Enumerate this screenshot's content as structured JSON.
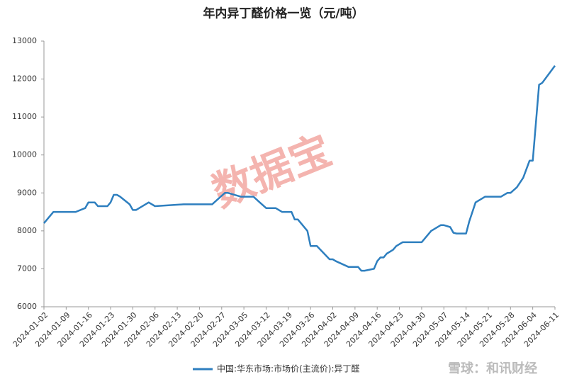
{
  "chart_data": {
    "type": "line",
    "title": "年内异丁醛价格一览（元/吨）",
    "watermark": "数据宝",
    "source": "雪球：和讯财经",
    "x": [
      "2024-01-02",
      "2024-01-05",
      "2024-01-12",
      "2024-01-15",
      "2024-01-16",
      "2024-01-18",
      "2024-01-19",
      "2024-01-22",
      "2024-01-23",
      "2024-01-24",
      "2024-01-25",
      "2024-01-26",
      "2024-01-29",
      "2024-01-30",
      "2024-01-31",
      "2024-02-04",
      "2024-02-06",
      "2024-02-15",
      "2024-02-24",
      "2024-02-26",
      "2024-02-28",
      "2024-02-29",
      "2024-03-04",
      "2024-03-08",
      "2024-03-10",
      "2024-03-12",
      "2024-03-15",
      "2024-03-17",
      "2024-03-20",
      "2024-03-21",
      "2024-03-22",
      "2024-03-25",
      "2024-03-26",
      "2024-03-28",
      "2024-04-01",
      "2024-04-02",
      "2024-04-03",
      "2024-04-07",
      "2024-04-10",
      "2024-04-11",
      "2024-04-12",
      "2024-04-15",
      "2024-04-16",
      "2024-04-17",
      "2024-04-18",
      "2024-04-19",
      "2024-04-21",
      "2024-04-22",
      "2024-04-24",
      "2024-04-30",
      "2024-05-03",
      "2024-05-06",
      "2024-05-07",
      "2024-05-09",
      "2024-05-10",
      "2024-05-11",
      "2024-05-14",
      "2024-05-15",
      "2024-05-17",
      "2024-05-20",
      "2024-05-25",
      "2024-05-27",
      "2024-05-28",
      "2024-05-30",
      "2024-06-01",
      "2024-06-03",
      "2024-06-04",
      "2024-06-06",
      "2024-06-07",
      "2024-06-11"
    ],
    "series": [
      {
        "name": "中国:华东市场:市场价(主流价):异丁醛",
        "color": "#2e7fbf",
        "values": [
          8200,
          8500,
          8500,
          8600,
          8750,
          8750,
          8650,
          8650,
          8750,
          8950,
          8950,
          8900,
          8700,
          8550,
          8550,
          8750,
          8650,
          8700,
          8700,
          8850,
          9000,
          9000,
          8900,
          8900,
          8750,
          8600,
          8600,
          8500,
          8500,
          8300,
          8300,
          8000,
          7600,
          7600,
          7250,
          7250,
          7200,
          7050,
          7050,
          6950,
          6950,
          7000,
          7200,
          7300,
          7300,
          7400,
          7500,
          7600,
          7700,
          7700,
          8000,
          8150,
          8150,
          8100,
          7950,
          7930,
          7930,
          8250,
          8750,
          8900,
          8900,
          9000,
          9000,
          9150,
          9400,
          9850,
          9850,
          11850,
          11900,
          12350
        ]
      }
    ],
    "xlim": [
      "2024-01-02",
      "2024-06-11"
    ],
    "xticks": [
      "2024-01-02",
      "2024-01-09",
      "2024-01-16",
      "2024-01-23",
      "2024-01-30",
      "2024-02-06",
      "2024-02-13",
      "2024-02-20",
      "2024-02-27",
      "2024-03-05",
      "2024-03-12",
      "2024-03-19",
      "2024-03-26",
      "2024-04-02",
      "2024-04-09",
      "2024-04-16",
      "2024-04-23",
      "2024-04-30",
      "2024-05-07",
      "2024-05-14",
      "2024-05-21",
      "2024-05-28",
      "2024-06-04",
      "2024-06-11"
    ],
    "ylim": [
      6000,
      13000
    ],
    "yticks": [
      6000,
      7000,
      8000,
      9000,
      10000,
      11000,
      12000,
      13000
    ],
    "grid": false,
    "legend": "bottom"
  }
}
